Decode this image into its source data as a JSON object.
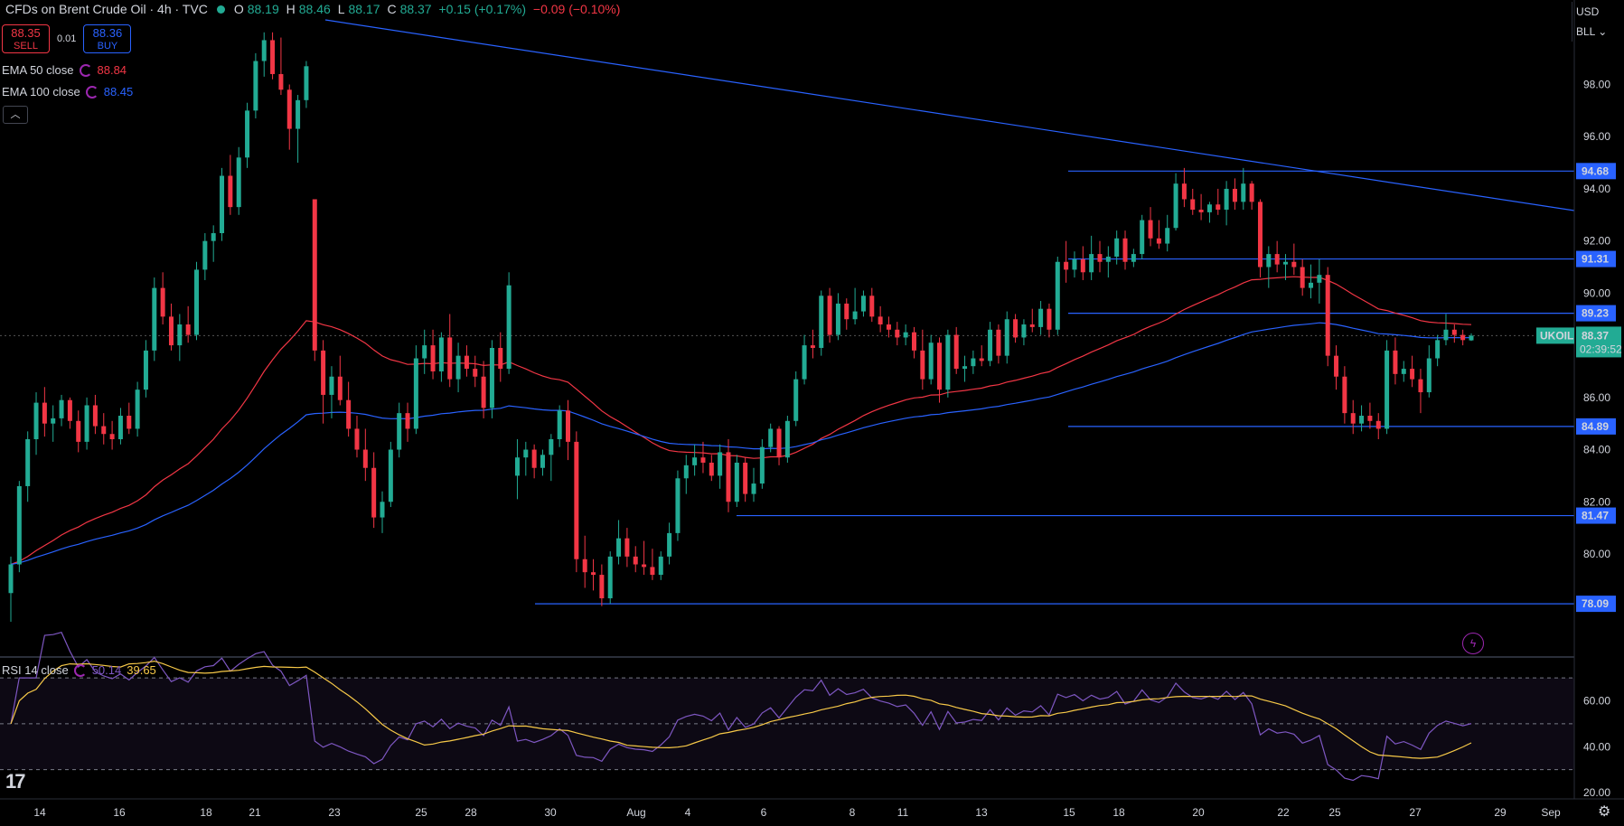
{
  "header": {
    "title": "CFDs on Brent Crude Oil · 4h · TVC",
    "ohlc": {
      "open_label": "O",
      "open": "88.19",
      "high_label": "H",
      "high": "88.46",
      "low_label": "L",
      "low": "88.17",
      "close_label": "C",
      "close": "88.37",
      "change": "+0.15 (+0.17%)",
      "change2": "−0.09 (−0.10%)"
    }
  },
  "trade": {
    "sell_price": "88.35",
    "sell_label": "SELL",
    "spread": "0.01",
    "buy_price": "88.36",
    "buy_label": "BUY"
  },
  "indicators": {
    "ema50": {
      "label": "EMA 50 close",
      "value": "88.84",
      "color": "#f23645"
    },
    "ema100": {
      "label": "EMA 100 close",
      "value": "88.45",
      "color": "#2962ff"
    },
    "rsi": {
      "label": "RSI 14 close",
      "value": "50.14",
      "ma_value": "39.65"
    }
  },
  "currency": {
    "code": "USD",
    "unit": "BLL"
  },
  "price_axis": {
    "ticks": [
      "98.00",
      "96.00",
      "94.00",
      "92.00",
      "90.00",
      "88.00",
      "86.00",
      "84.00",
      "82.00",
      "80.00"
    ],
    "tick_values": [
      98,
      96,
      94,
      92,
      90,
      88,
      86,
      84,
      82,
      80
    ],
    "levels": [
      {
        "label": "94.68",
        "value": 94.68
      },
      {
        "label": "91.31",
        "value": 91.31
      },
      {
        "label": "89.23",
        "value": 89.23
      },
      {
        "label": "84.89",
        "value": 84.89
      },
      {
        "label": "81.47",
        "value": 81.47
      },
      {
        "label": "78.09",
        "value": 78.09
      }
    ],
    "current": {
      "symbol": "UKOIL",
      "price": "88.37",
      "countdown": "02:39:52",
      "value": 88.37
    }
  },
  "rsi_axis": {
    "ticks": [
      "60.00",
      "40.00",
      "20.00"
    ],
    "tick_values": [
      60,
      40,
      20
    ]
  },
  "time_axis": {
    "labels": [
      "14",
      "16",
      "18",
      "21",
      "23",
      "25",
      "28",
      "30",
      "Aug",
      "4",
      "6",
      "8",
      "11",
      "13",
      "15",
      "18",
      "20",
      "22",
      "25",
      "27",
      "29",
      "Sep"
    ]
  },
  "chart_data": {
    "type": "candlestick",
    "symbol": "UKOIL",
    "interval": "4h",
    "ylim": [
      77,
      100
    ],
    "candles": [
      [
        78.5,
        79.9,
        77.4,
        79.6
      ],
      [
        79.6,
        82.8,
        79.3,
        82.6
      ],
      [
        82.6,
        84.7,
        82.0,
        84.4
      ],
      [
        84.4,
        86.2,
        83.8,
        85.8
      ],
      [
        85.8,
        86.4,
        84.5,
        85.0
      ],
      [
        85.0,
        85.7,
        84.3,
        85.2
      ],
      [
        85.2,
        86.1,
        84.9,
        85.9
      ],
      [
        85.9,
        86.0,
        84.8,
        85.1
      ],
      [
        85.1,
        85.5,
        83.9,
        84.3
      ],
      [
        84.3,
        86.0,
        84.0,
        85.7
      ],
      [
        85.7,
        86.1,
        84.6,
        84.9
      ],
      [
        84.9,
        85.4,
        84.2,
        84.6
      ],
      [
        84.6,
        85.1,
        84.0,
        84.4
      ],
      [
        84.4,
        85.6,
        84.2,
        85.3
      ],
      [
        85.3,
        85.8,
        84.6,
        84.8
      ],
      [
        84.8,
        86.6,
        84.5,
        86.3
      ],
      [
        86.3,
        88.2,
        86.0,
        87.8
      ],
      [
        87.8,
        90.6,
        87.4,
        90.2
      ],
      [
        90.2,
        90.8,
        88.8,
        89.1
      ],
      [
        89.1,
        89.6,
        87.8,
        88.0
      ],
      [
        88.0,
        89.2,
        87.4,
        88.8
      ],
      [
        88.8,
        89.5,
        88.1,
        88.4
      ],
      [
        88.4,
        91.2,
        88.2,
        90.9
      ],
      [
        90.9,
        92.3,
        90.5,
        92.0
      ],
      [
        92.0,
        92.6,
        91.2,
        92.3
      ],
      [
        92.3,
        94.8,
        92.0,
        94.5
      ],
      [
        94.5,
        95.3,
        93.0,
        93.3
      ],
      [
        93.3,
        95.6,
        93.0,
        95.2
      ],
      [
        95.2,
        97.3,
        94.8,
        97.0
      ],
      [
        97.0,
        99.2,
        96.7,
        98.9
      ],
      [
        98.9,
        100.0,
        98.3,
        99.7
      ],
      [
        99.7,
        100.0,
        98.2,
        98.4
      ],
      [
        98.4,
        99.8,
        97.6,
        97.8
      ],
      [
        97.8,
        98.0,
        95.5,
        96.3
      ],
      [
        96.3,
        97.6,
        95.0,
        97.4
      ],
      [
        97.4,
        98.9,
        97.1,
        98.7
      ],
      [
        93.6,
        93.6,
        87.4,
        87.8
      ],
      [
        87.8,
        88.2,
        85.0,
        86.1
      ],
      [
        86.1,
        87.2,
        85.2,
        86.8
      ],
      [
        86.8,
        87.6,
        85.7,
        85.9
      ],
      [
        85.9,
        86.6,
        84.5,
        84.8
      ],
      [
        84.8,
        85.3,
        83.7,
        84.0
      ],
      [
        84.0,
        84.8,
        82.8,
        83.3
      ],
      [
        83.3,
        83.9,
        81.0,
        81.4
      ],
      [
        81.4,
        82.4,
        80.8,
        82.0
      ],
      [
        82.0,
        84.3,
        81.8,
        84.0
      ],
      [
        84.0,
        85.8,
        83.7,
        85.4
      ],
      [
        85.4,
        85.8,
        84.3,
        84.8
      ],
      [
        84.8,
        88.0,
        84.6,
        87.5
      ],
      [
        87.5,
        88.6,
        86.9,
        88.0
      ],
      [
        88.0,
        88.6,
        86.7,
        87.0
      ],
      [
        87.0,
        88.5,
        86.6,
        88.3
      ],
      [
        88.3,
        89.2,
        86.4,
        86.7
      ],
      [
        86.7,
        88.1,
        86.2,
        87.6
      ],
      [
        87.6,
        88.0,
        86.8,
        87.1
      ],
      [
        87.1,
        87.6,
        86.4,
        86.8
      ],
      [
        86.8,
        87.4,
        85.2,
        85.6
      ],
      [
        85.6,
        88.2,
        85.2,
        87.9
      ],
      [
        87.9,
        88.5,
        86.6,
        87.1
      ],
      [
        87.1,
        90.8,
        86.9,
        90.3
      ],
      [
        83.0,
        84.4,
        82.1,
        83.7
      ],
      [
        83.7,
        84.3,
        83.0,
        84.0
      ],
      [
        84.0,
        84.2,
        82.9,
        83.3
      ],
      [
        83.3,
        84.0,
        83.0,
        83.8
      ],
      [
        83.8,
        84.6,
        82.8,
        84.4
      ],
      [
        84.4,
        85.7,
        84.1,
        85.5
      ],
      [
        85.5,
        85.9,
        83.6,
        84.3
      ],
      [
        84.3,
        84.7,
        79.3,
        79.8
      ],
      [
        79.8,
        80.7,
        78.7,
        79.3
      ],
      [
        79.3,
        79.8,
        78.6,
        79.2
      ],
      [
        79.2,
        79.6,
        78.0,
        78.3
      ],
      [
        78.3,
        80.1,
        78.1,
        79.9
      ],
      [
        79.9,
        81.3,
        79.6,
        80.6
      ],
      [
        80.6,
        81.0,
        79.5,
        79.9
      ],
      [
        79.9,
        80.3,
        79.3,
        79.6
      ],
      [
        79.6,
        80.5,
        79.2,
        79.5
      ],
      [
        79.5,
        80.2,
        79.0,
        79.2
      ],
      [
        79.2,
        80.1,
        79.0,
        79.9
      ],
      [
        79.9,
        81.2,
        79.6,
        80.8
      ],
      [
        80.8,
        83.2,
        80.5,
        82.9
      ],
      [
        82.9,
        83.8,
        82.3,
        83.4
      ],
      [
        83.4,
        84.2,
        83.0,
        83.7
      ],
      [
        83.7,
        84.3,
        83.1,
        83.5
      ],
      [
        83.5,
        83.8,
        82.8,
        83.0
      ],
      [
        83.0,
        84.2,
        82.5,
        83.9
      ],
      [
        83.9,
        84.4,
        81.6,
        82.0
      ],
      [
        82.0,
        83.8,
        81.8,
        83.5
      ],
      [
        83.5,
        83.7,
        82.0,
        82.3
      ],
      [
        82.3,
        83.3,
        82.0,
        82.7
      ],
      [
        82.7,
        84.4,
        82.5,
        84.1
      ],
      [
        84.1,
        85.0,
        83.9,
        84.8
      ],
      [
        84.8,
        84.9,
        83.4,
        83.7
      ],
      [
        83.7,
        85.3,
        83.5,
        85.1
      ],
      [
        85.1,
        87.0,
        84.9,
        86.7
      ],
      [
        86.7,
        88.4,
        86.5,
        88.0
      ],
      [
        88.0,
        88.6,
        87.5,
        87.9
      ],
      [
        87.9,
        90.1,
        87.6,
        89.9
      ],
      [
        89.9,
        90.2,
        88.1,
        88.4
      ],
      [
        88.4,
        90.0,
        88.2,
        89.6
      ],
      [
        89.6,
        89.8,
        88.6,
        89.0
      ],
      [
        89.0,
        90.2,
        88.8,
        89.3
      ],
      [
        89.3,
        90.1,
        89.1,
        89.9
      ],
      [
        89.9,
        90.2,
        88.9,
        89.1
      ],
      [
        89.1,
        89.5,
        88.5,
        88.8
      ],
      [
        88.8,
        89.1,
        88.3,
        88.6
      ],
      [
        88.6,
        88.9,
        88.0,
        88.3
      ],
      [
        88.3,
        88.8,
        88.0,
        88.5
      ],
      [
        88.5,
        88.7,
        87.5,
        87.8
      ],
      [
        87.8,
        88.6,
        86.3,
        86.7
      ],
      [
        86.7,
        88.4,
        86.5,
        88.1
      ],
      [
        88.1,
        88.3,
        85.8,
        86.3
      ],
      [
        86.3,
        88.6,
        86.0,
        88.4
      ],
      [
        88.4,
        88.7,
        86.9,
        87.1
      ],
      [
        87.1,
        87.6,
        86.6,
        87.2
      ],
      [
        87.2,
        87.8,
        86.9,
        87.5
      ],
      [
        87.5,
        88.0,
        87.2,
        87.4
      ],
      [
        87.4,
        88.9,
        87.2,
        88.6
      ],
      [
        88.6,
        88.8,
        87.3,
        87.6
      ],
      [
        87.6,
        89.3,
        87.3,
        89.0
      ],
      [
        89.0,
        89.2,
        88.1,
        88.3
      ],
      [
        88.3,
        89.0,
        88.0,
        88.8
      ],
      [
        88.8,
        89.4,
        88.5,
        88.7
      ],
      [
        88.7,
        89.7,
        88.4,
        89.4
      ],
      [
        89.4,
        89.6,
        88.3,
        88.6
      ],
      [
        88.6,
        91.4,
        88.4,
        91.2
      ],
      [
        91.2,
        92.0,
        90.4,
        90.9
      ],
      [
        90.9,
        91.6,
        90.6,
        91.3
      ],
      [
        91.3,
        91.8,
        90.5,
        90.8
      ],
      [
        90.8,
        92.2,
        90.5,
        91.5
      ],
      [
        91.5,
        92.0,
        90.8,
        91.2
      ],
      [
        91.2,
        91.8,
        90.6,
        91.4
      ],
      [
        91.4,
        92.4,
        91.1,
        92.1
      ],
      [
        92.1,
        92.4,
        90.9,
        91.2
      ],
      [
        91.2,
        91.7,
        91.0,
        91.5
      ],
      [
        91.5,
        93.0,
        91.3,
        92.8
      ],
      [
        92.8,
        93.3,
        91.8,
        92.1
      ],
      [
        92.1,
        92.8,
        91.7,
        91.9
      ],
      [
        91.9,
        93.0,
        91.6,
        92.5
      ],
      [
        92.5,
        94.6,
        92.4,
        94.2
      ],
      [
        94.2,
        94.8,
        93.3,
        93.6
      ],
      [
        93.6,
        94.0,
        93.0,
        93.2
      ],
      [
        93.2,
        93.8,
        92.8,
        93.1
      ],
      [
        93.1,
        93.5,
        92.7,
        93.4
      ],
      [
        93.4,
        94.0,
        93.0,
        93.2
      ],
      [
        93.2,
        94.3,
        92.6,
        94.0
      ],
      [
        94.0,
        94.4,
        93.2,
        93.5
      ],
      [
        93.5,
        94.8,
        93.2,
        94.2
      ],
      [
        94.2,
        94.3,
        93.2,
        93.5
      ],
      [
        93.5,
        93.6,
        90.6,
        91.0
      ],
      [
        91.0,
        91.8,
        90.2,
        91.5
      ],
      [
        91.5,
        92.0,
        90.8,
        91.1
      ],
      [
        91.1,
        91.5,
        90.5,
        91.2
      ],
      [
        91.2,
        91.9,
        90.7,
        91.0
      ],
      [
        91.0,
        91.3,
        89.9,
        90.2
      ],
      [
        90.2,
        91.1,
        89.8,
        90.4
      ],
      [
        90.4,
        91.3,
        89.6,
        90.7
      ],
      [
        90.7,
        91.0,
        87.2,
        87.6
      ],
      [
        87.6,
        88.0,
        86.3,
        86.8
      ],
      [
        86.8,
        87.2,
        85.0,
        85.4
      ],
      [
        85.4,
        85.9,
        84.6,
        85.0
      ],
      [
        85.0,
        85.7,
        84.7,
        85.3
      ],
      [
        85.3,
        85.8,
        84.8,
        85.1
      ],
      [
        85.1,
        85.4,
        84.4,
        84.8
      ],
      [
        84.8,
        88.2,
        84.6,
        87.8
      ],
      [
        87.8,
        88.3,
        86.5,
        86.9
      ],
      [
        86.9,
        87.4,
        86.6,
        87.1
      ],
      [
        87.1,
        87.6,
        86.4,
        86.7
      ],
      [
        86.7,
        87.1,
        85.4,
        86.2
      ],
      [
        86.2,
        88.0,
        86.0,
        87.5
      ],
      [
        87.5,
        88.4,
        87.2,
        88.2
      ],
      [
        88.2,
        89.2,
        88.0,
        88.6
      ],
      [
        88.6,
        88.8,
        88.1,
        88.4
      ],
      [
        88.4,
        88.6,
        88.0,
        88.2
      ],
      [
        88.19,
        88.46,
        88.17,
        88.37
      ]
    ]
  }
}
